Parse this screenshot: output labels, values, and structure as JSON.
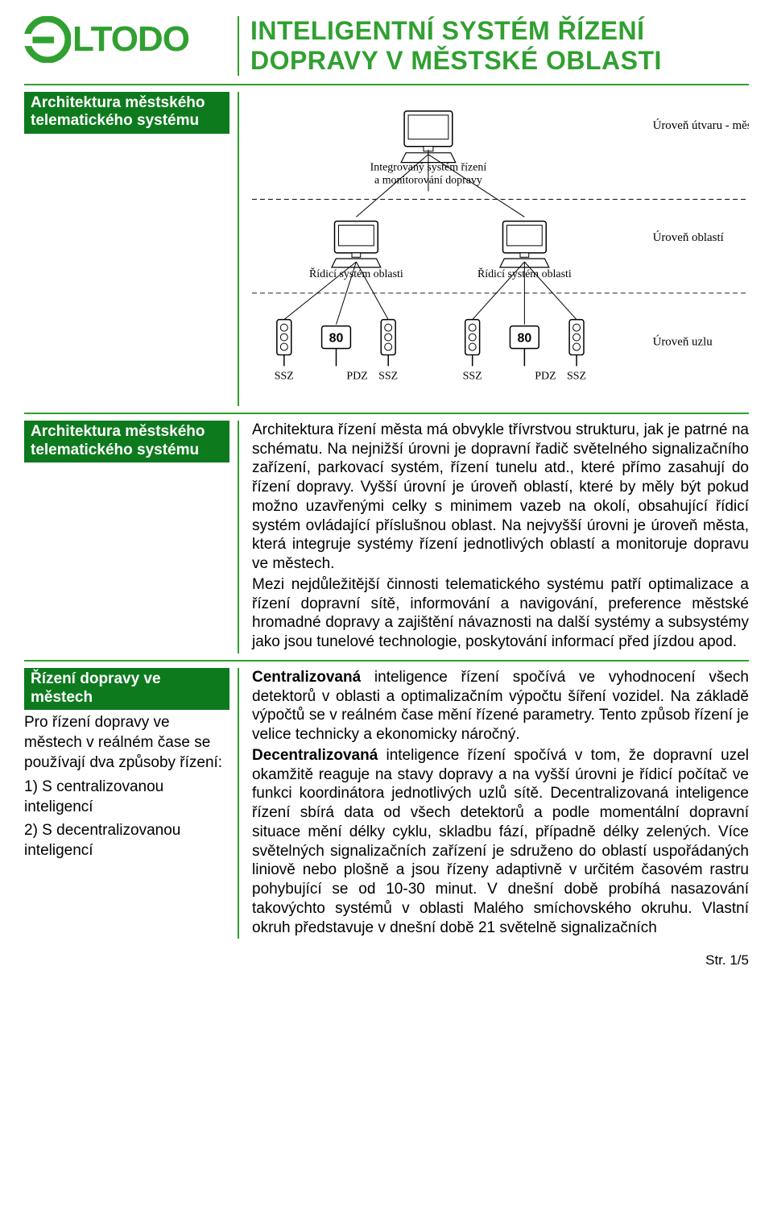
{
  "logo": {
    "text": "LTODO"
  },
  "title": "INTELIGENTNÍ SYSTÉM ŘÍZENÍ DOPRAVY V MĚSTSKÉ OBLASTI",
  "sidebar": {
    "sec1": {
      "label": "Architektura městského telematického systému"
    },
    "sec2": {
      "label": "Architektura městského telematického systému"
    },
    "sec3": {
      "label": "Řízení dopravy ve městech",
      "intro": "Pro řízení dopravy ve městech v  reálném čase se používají dva způsoby řízení:",
      "item1": "1) S  centralizovanou inteligencí",
      "item2": "2) S decentralizovanou inteligencí"
    }
  },
  "diagram": {
    "top_label": "Integrovaný systém řízení a monitorování dopravy",
    "level_top": "Úroveň útvaru - města",
    "mid_label": "Řídicí systém oblasti",
    "level_mid": "Úroveň oblastí",
    "level_bot": "Úroveň uzlu",
    "ssz": "SSZ",
    "pdz": "PDZ",
    "pdz_val": "80",
    "colors": {
      "line": "#000000",
      "bg": "#ffffff",
      "text": "#000000"
    },
    "font_label": 14,
    "font_level": 15
  },
  "body": {
    "p1": "Architektura řízení města má obvykle třívrstvou strukturu, jak je patrné na schématu. Na nejnižší úrovni je dopravní řadič světelného signalizačního zařízení, parkovací systém, řízení tunelu atd., které přímo zasahují do řízení dopravy. Vyšší úrovní je úroveň oblastí, které by měly být pokud možno uzavřenými celky s minimem vazeb na okolí, obsahující řídicí systém ovládající příslušnou oblast. Na nejvyšší úrovni je úroveň města, která integruje systémy řízení jednotlivých oblastí a monitoruje dopravu ve městech.",
    "p2": "Mezi nejdůležitější činnosti telematického systému patří optimalizace a řízení dopravní sítě, informování a navigování, preference městské hromadné dopravy a zajištění návaznosti na další systémy a subsystémy jako jsou tunelové technologie, poskytování informací před jízdou apod.",
    "p3a": "Centralizovaná",
    "p3b": " inteligence řízení spočívá ve vyhodnocení všech detektorů v oblasti a optimalizačním výpočtu šíření vozidel. Na základě výpočtů se v reálném čase mění řízené parametry. Tento způsob řízení je velice technicky a ekonomicky náročný.",
    "p4a": "Decentralizovaná",
    "p4b": " inteligence řízení spočívá v tom, že dopravní uzel   okamžitě reaguje na stavy dopravy a na vyšší úrovni je řídicí počítač ve funkci koordinátora jednotlivých uzlů sítě. Decentralizovaná inteligence řízení sbírá data od všech detektorů a podle momentální dopravní situace mění délky cyklu, skladbu fází, případně délky zelených. Více světelných signalizačních zařízení je sdruženo do oblastí uspořádaných liniově nebo plošně a jsou řízeny adaptivně v určitém časovém rastru pohybující se od 10-30 minut. V dnešní době probíhá nasazování takovýchto systémů v oblasti Malého smíchovského okruhu. Vlastní okruh představuje v dnešní době 21 světelně signalizačních"
  },
  "footer": "Str. 1/5"
}
